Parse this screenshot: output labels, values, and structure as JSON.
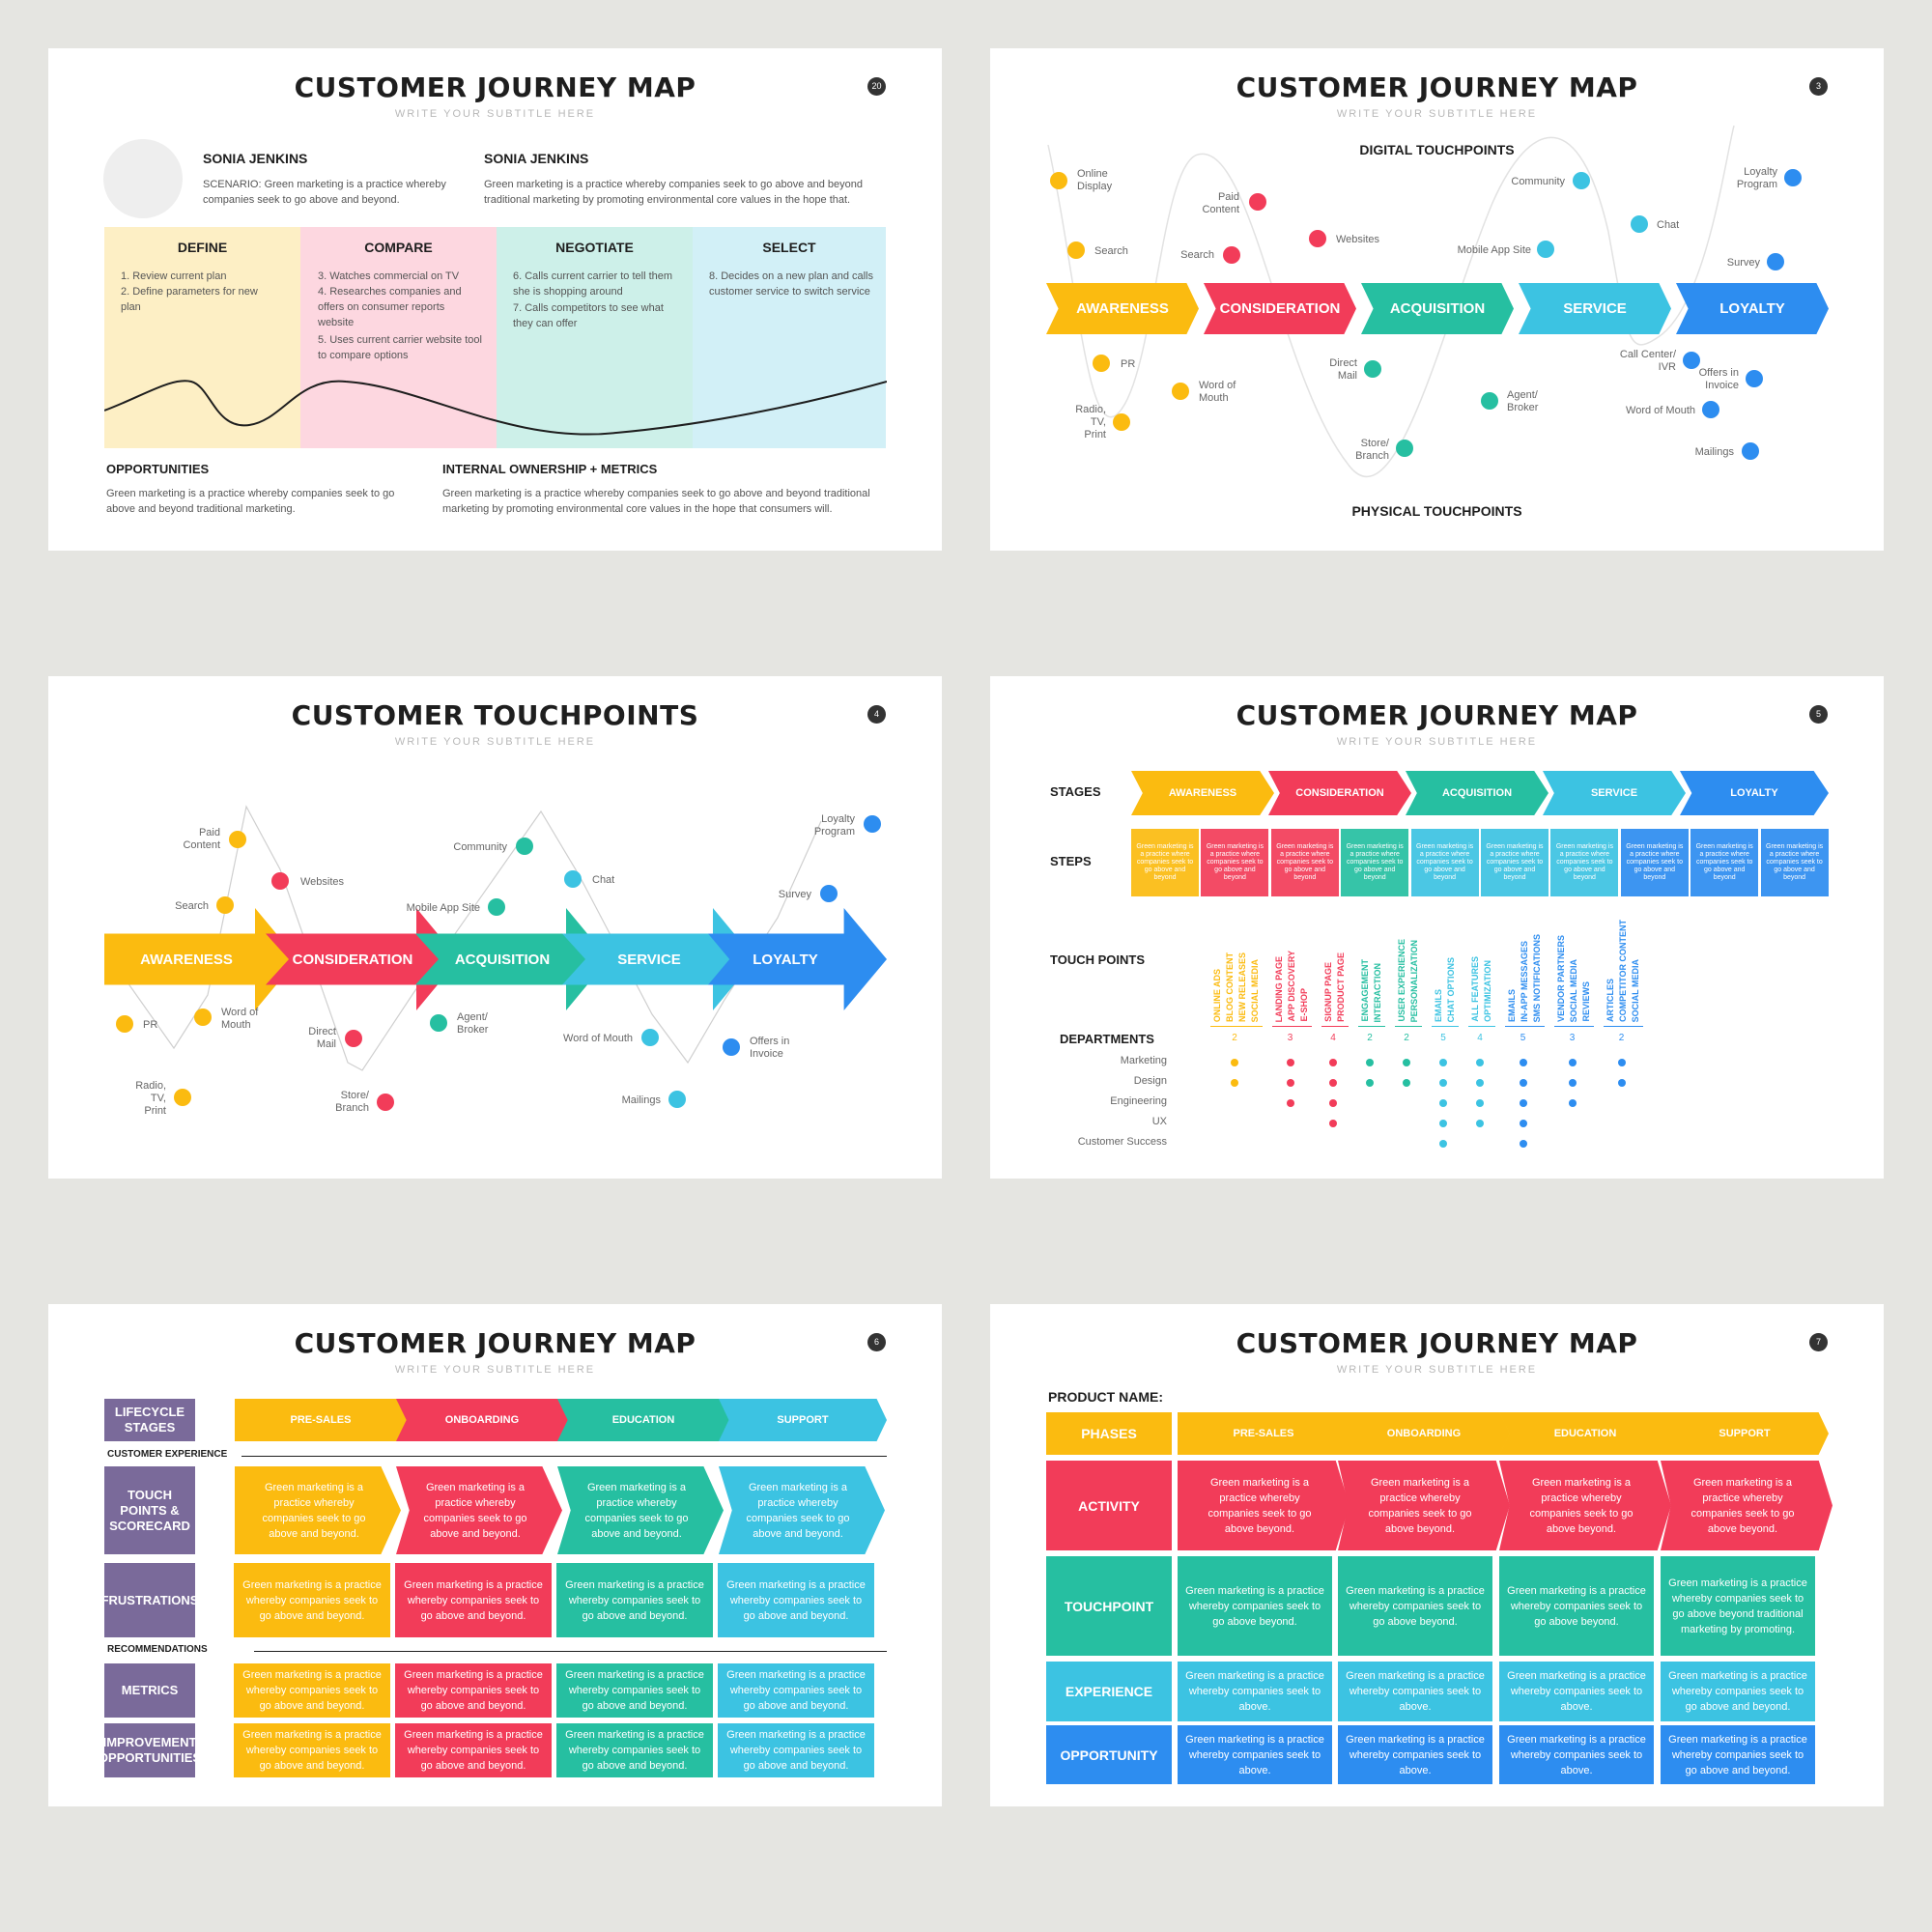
{
  "colors": {
    "yellow": "#fbbb10",
    "red": "#f23c59",
    "green": "#26bfa1",
    "cyan": "#3cc3e2",
    "blue": "#2d8df0",
    "purple": "#7a6a9a"
  },
  "subtitle": "WRITE YOUR SUBTITLE HERE",
  "s1": {
    "title": "CUSTOMER JOURNEY MAP",
    "num": "20",
    "person": "SONIA JENKINS",
    "scenario": "SCENARIO: Green marketing is a practice whereby companies seek to go above and beyond.",
    "person2": "SONIA JENKINS",
    "desc": "Green marketing is a practice whereby companies seek to go above and beyond traditional marketing by promoting environmental core values in the hope that.",
    "cols": [
      {
        "title": "DEFINE",
        "items": [
          "1.   Review current plan",
          "2.   Define parameters for new plan"
        ]
      },
      {
        "title": "COMPARE",
        "items": [
          "3.   Watches commercial on TV",
          "4.   Researches companies and offers on consumer reports website",
          "5.   Uses current carrier website tool to compare options"
        ]
      },
      {
        "title": "NEGOTIATE",
        "items": [
          "6.   Calls current carrier to tell them she is shopping around",
          "7.   Calls competitors to see what they can offer"
        ]
      },
      {
        "title": "SELECT",
        "items": [
          "8.   Decides on a new plan and calls customer service to switch service"
        ]
      }
    ],
    "opp_title": "OPPORTUNITIES",
    "opp_text": "Green marketing is a practice whereby companies seek to go above and beyond traditional marketing.",
    "own_title": "INTERNAL OWNERSHIP + METRICS",
    "own_text": "Green marketing is a practice whereby companies seek to go above and beyond traditional marketing by promoting environmental core values in the hope that consumers will."
  },
  "s2": {
    "title": "CUSTOMER JOURNEY MAP",
    "num": "3",
    "digital": "DIGITAL TOUCHPOINTS",
    "physical": "PHYSICAL TOUCHPOINTS",
    "stages": [
      "AWARENESS",
      "CONSIDERATION",
      "ACQUISITION",
      "SERVICE",
      "LOYALTY"
    ],
    "labels": [
      "Online\nDisplay",
      "Search",
      "Paid\nContent",
      "Search",
      "Websites",
      "Community",
      "Mobile App Site",
      "Chat",
      "Loyalty\nProgram",
      "Survey",
      "PR",
      "Radio,\nTV,\nPrint",
      "Word of\nMouth",
      "Direct\nMail",
      "Store/\nBranch",
      "Agent/\nBroker",
      "Call Center/\nIVR",
      "Word of Mouth",
      "Offers in\nInvoice",
      "Mailings"
    ]
  },
  "s3": {
    "title": "CUSTOMER TOUCHPOINTS",
    "num": "4",
    "stages": [
      "AWARENESS",
      "CONSIDERATION",
      "ACQUISITION",
      "SERVICE",
      "LOYALTY"
    ],
    "labels": [
      "Paid\nContent",
      "Websites",
      "Search",
      "Community",
      "Chat",
      "Mobile App Site",
      "Loyalty\nProgram",
      "Survey",
      "PR",
      "Word of\nMouth",
      "Radio,\nTV,\nPrint",
      "Direct\nMail",
      "Store/\nBranch",
      "Agent/\nBroker",
      "Word of Mouth",
      "Mailings",
      "Offers in\nInvoice"
    ]
  },
  "s4": {
    "title": "CUSTOMER JOURNEY MAP",
    "num": "5",
    "row_stages": "STAGES",
    "row_steps": "STEPS",
    "row_touch": "TOUCH POINTS",
    "row_dept": "DEPARTMENTS",
    "stages": [
      "AWARENESS",
      "CONSIDERATION",
      "ACQUISITION",
      "SERVICE",
      "LOYALTY"
    ],
    "step_text": "Green marketing is a practice where companies seek to go above and beyond",
    "touchpoints": [
      "ONLINE ADS",
      "BLOG CONTENT",
      "NEW RELEASES",
      "SOCIAL MEDIA",
      "LANDING PAGE",
      "APP DISCOVERY",
      "E-SHOP",
      "SIGNUP PAGE",
      "PRODUCT PAGE",
      "ENGAGEMENT",
      "INTERACTION",
      "USER EXPERIENCE",
      "PERSONALIZATION",
      "EMAILS",
      "CHAT OPTIONS",
      "ALL FEATURES",
      "OPTIMIZATION",
      "EMAILS",
      "IN-APP MESSAGES",
      "SMS NOTIFICATIONS",
      "VENDOR PARTNERS",
      "SOCIAL MEDIA",
      "REVIEWS",
      "ARTICLES",
      "COMPETITOR CONTENT",
      "SOCIAL MEDIA"
    ],
    "departments": [
      "Marketing",
      "Design",
      "Engineering",
      "UX",
      "Customer Success"
    ],
    "counts": [
      "2",
      "3",
      "4",
      "2",
      "2",
      "5",
      "4",
      "5",
      "3",
      "2"
    ],
    "dept_matrix": [
      [
        1,
        1,
        0,
        0,
        0
      ],
      [
        1,
        1,
        1,
        0,
        0
      ],
      [
        1,
        1,
        1,
        1,
        0
      ],
      [
        1,
        1,
        0,
        0,
        0
      ],
      [
        1,
        1,
        0,
        0,
        0
      ],
      [
        1,
        1,
        1,
        1,
        1
      ],
      [
        1,
        1,
        1,
        1,
        0
      ],
      [
        1,
        1,
        1,
        1,
        1
      ],
      [
        1,
        1,
        1,
        0,
        0
      ],
      [
        1,
        1,
        0,
        0,
        0
      ]
    ]
  },
  "s5": {
    "title": "CUSTOMER JOURNEY MAP",
    "num": "6",
    "lifecycle": "LIFECYCLE STAGES",
    "phases": [
      "PRE-SALES",
      "ONBOARDING",
      "EDUCATION",
      "SUPPORT"
    ],
    "cx": "CUSTOMER EXPERIENCE",
    "rec": "RECOMMENDATIONS",
    "rows": [
      "TOUCH POINTS & SCORECARD",
      "FRUSTRATIONS",
      "METRICS",
      "IMPROVEMENT OPPORTUNITIES"
    ],
    "text_a": "Green marketing is a practice whereby companies seek to go above and beyond.",
    "text_b": "Green marketing is a practice whereby companies seek to go above and beyond."
  },
  "s6": {
    "title": "CUSTOMER JOURNEY MAP",
    "num": "7",
    "product": "PRODUCT NAME:",
    "phases_label": "PHASES",
    "phases": [
      "PRE-SALES",
      "ONBOARDING",
      "EDUCATION",
      "SUPPORT"
    ],
    "rows": [
      "ACTIVITY",
      "TOUCHPOINT",
      "EXPERIENCE",
      "OPPORTUNITY"
    ],
    "activity": "Green marketing is a practice whereby companies seek to go above beyond.",
    "touch": [
      "Green marketing is a practice whereby companies seek to go above beyond.",
      "Green marketing is a practice whereby companies seek to go above beyond.",
      "Green marketing is a practice whereby companies seek to go above beyond.",
      "Green marketing is a practice whereby companies seek to go above beyond traditional marketing by promoting."
    ],
    "exp": [
      "Green marketing is a practice whereby companies seek to above.",
      "Green marketing is a practice whereby companies seek to above.",
      "Green marketing is a practice whereby companies seek to above.",
      "Green marketing is a practice whereby companies seek to go above and beyond."
    ],
    "opp": [
      "Green marketing is a practice whereby companies seek to above.",
      "Green marketing is a practice whereby companies seek to above.",
      "Green marketing is a practice whereby companies seek to above.",
      "Green marketing is a practice whereby companies seek to go above and beyond."
    ]
  }
}
